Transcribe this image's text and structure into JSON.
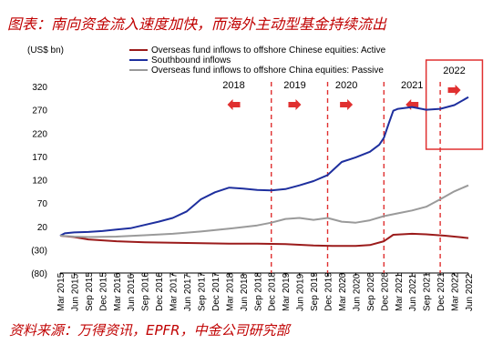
{
  "caption": {
    "title": "图表：南向资金流入速度加快，而海外主动型基金持续流出",
    "source": "资料来源：万得资讯，EPFR，中金公司研究部"
  },
  "colors": {
    "caption": "#c00000",
    "active": "#9b1b1b",
    "southbound": "#1e2f9e",
    "passive": "#9a9a9a",
    "annotation": "#e03030"
  },
  "chart_data": {
    "type": "line",
    "ylabel": "(US$ bn)",
    "yticks": [
      320,
      270,
      220,
      170,
      120,
      70,
      20,
      -30,
      -80
    ],
    "ytick_labels": [
      "320",
      "270",
      "220",
      "170",
      "120",
      "70",
      "20",
      "(30)",
      "(80)"
    ],
    "ylim": [
      -80,
      320
    ],
    "xlim": [
      "2015-03",
      "2022-06"
    ],
    "x_tick_labels": [
      "Mar 2015",
      "Jun 2015",
      "Sep 2015",
      "Dec 2015",
      "Mar 2016",
      "Jun 2016",
      "Sep 2016",
      "Dec 2016",
      "Mar 2017",
      "Jun 2017",
      "Sep 2017",
      "Dec 2017",
      "Mar 2018",
      "Jun 2018",
      "Sep 2018",
      "Dec 2018",
      "Mar 2019",
      "Jun 2019",
      "Sep 2019",
      "Dec 2019",
      "Mar 2020",
      "Jun 2020",
      "Sep 2020",
      "Dec 2020",
      "Mar 2021",
      "Jun 2021",
      "Sep 2021",
      "Dec 2021",
      "Mar 2022",
      "Jun 2022"
    ],
    "grid": false,
    "legend_position": "top-left",
    "series": [
      {
        "name": "Overseas fund inflows to offshore Chinese equities: Active",
        "color": "#9b1b1b",
        "points": [
          [
            "2015-03",
            0
          ],
          [
            "2015-06",
            -3
          ],
          [
            "2015-09",
            -8
          ],
          [
            "2016-03",
            -12
          ],
          [
            "2016-09",
            -14
          ],
          [
            "2017-03",
            -15
          ],
          [
            "2017-09",
            -16
          ],
          [
            "2018-03",
            -17
          ],
          [
            "2018-09",
            -17
          ],
          [
            "2019-03",
            -18
          ],
          [
            "2019-09",
            -21
          ],
          [
            "2020-01",
            -22
          ],
          [
            "2020-06",
            -22
          ],
          [
            "2020-09",
            -20
          ],
          [
            "2020-12",
            -12
          ],
          [
            "2021-02",
            2
          ],
          [
            "2021-06",
            4
          ],
          [
            "2021-09",
            3
          ],
          [
            "2022-01",
            0
          ],
          [
            "2022-04",
            -3
          ],
          [
            "2022-06",
            -5
          ]
        ]
      },
      {
        "name": "Southbound inflows",
        "color": "#1e2f9e",
        "points": [
          [
            "2015-03",
            0
          ],
          [
            "2015-04",
            5
          ],
          [
            "2015-06",
            7
          ],
          [
            "2015-09",
            8
          ],
          [
            "2015-12",
            10
          ],
          [
            "2016-03",
            13
          ],
          [
            "2016-06",
            16
          ],
          [
            "2016-09",
            23
          ],
          [
            "2016-12",
            30
          ],
          [
            "2017-03",
            38
          ],
          [
            "2017-06",
            52
          ],
          [
            "2017-09",
            78
          ],
          [
            "2017-12",
            93
          ],
          [
            "2018-03",
            103
          ],
          [
            "2018-06",
            101
          ],
          [
            "2018-09",
            98
          ],
          [
            "2018-12",
            97
          ],
          [
            "2019-03",
            100
          ],
          [
            "2019-06",
            108
          ],
          [
            "2019-09",
            117
          ],
          [
            "2019-12",
            130
          ],
          [
            "2020-03",
            158
          ],
          [
            "2020-06",
            168
          ],
          [
            "2020-09",
            180
          ],
          [
            "2020-11",
            195
          ],
          [
            "2020-12",
            210
          ],
          [
            "2021-01",
            240
          ],
          [
            "2021-02",
            268
          ],
          [
            "2021-03",
            272
          ],
          [
            "2021-06",
            276
          ],
          [
            "2021-09",
            270
          ],
          [
            "2021-12",
            272
          ],
          [
            "2022-03",
            280
          ],
          [
            "2022-06",
            297
          ]
        ]
      },
      {
        "name": "Overseas fund inflows to offshore China equities: Passive",
        "color": "#9a9a9a",
        "points": [
          [
            "2015-03",
            0
          ],
          [
            "2015-06",
            -2
          ],
          [
            "2015-09",
            -3
          ],
          [
            "2016-03",
            -2
          ],
          [
            "2016-09",
            1
          ],
          [
            "2017-03",
            4
          ],
          [
            "2017-09",
            9
          ],
          [
            "2018-03",
            15
          ],
          [
            "2018-09",
            22
          ],
          [
            "2018-12",
            28
          ],
          [
            "2019-03",
            36
          ],
          [
            "2019-06",
            38
          ],
          [
            "2019-09",
            34
          ],
          [
            "2019-12",
            38
          ],
          [
            "2020-03",
            30
          ],
          [
            "2020-06",
            28
          ],
          [
            "2020-09",
            33
          ],
          [
            "2020-12",
            42
          ],
          [
            "2021-03",
            48
          ],
          [
            "2021-06",
            54
          ],
          [
            "2021-09",
            62
          ],
          [
            "2021-12",
            78
          ],
          [
            "2022-03",
            95
          ],
          [
            "2022-06",
            108
          ]
        ]
      }
    ],
    "annotations": {
      "years": [
        {
          "label": "2018",
          "at": "2018-04",
          "arrow": "left"
        },
        {
          "label": "2019",
          "at": "2019-05",
          "arrow": "right"
        },
        {
          "label": "2020",
          "at": "2020-04",
          "arrow": "right"
        },
        {
          "label": "2021",
          "at": "2021-06",
          "arrow": "left"
        },
        {
          "label": "2022",
          "at": "2022-03",
          "arrow": "right"
        }
      ],
      "dashed_lines": [
        "2018-12",
        "2019-12",
        "2020-12",
        "2021-12"
      ],
      "highlight_box": {
        "from": "2021-09",
        "to": "2022-09"
      }
    }
  }
}
